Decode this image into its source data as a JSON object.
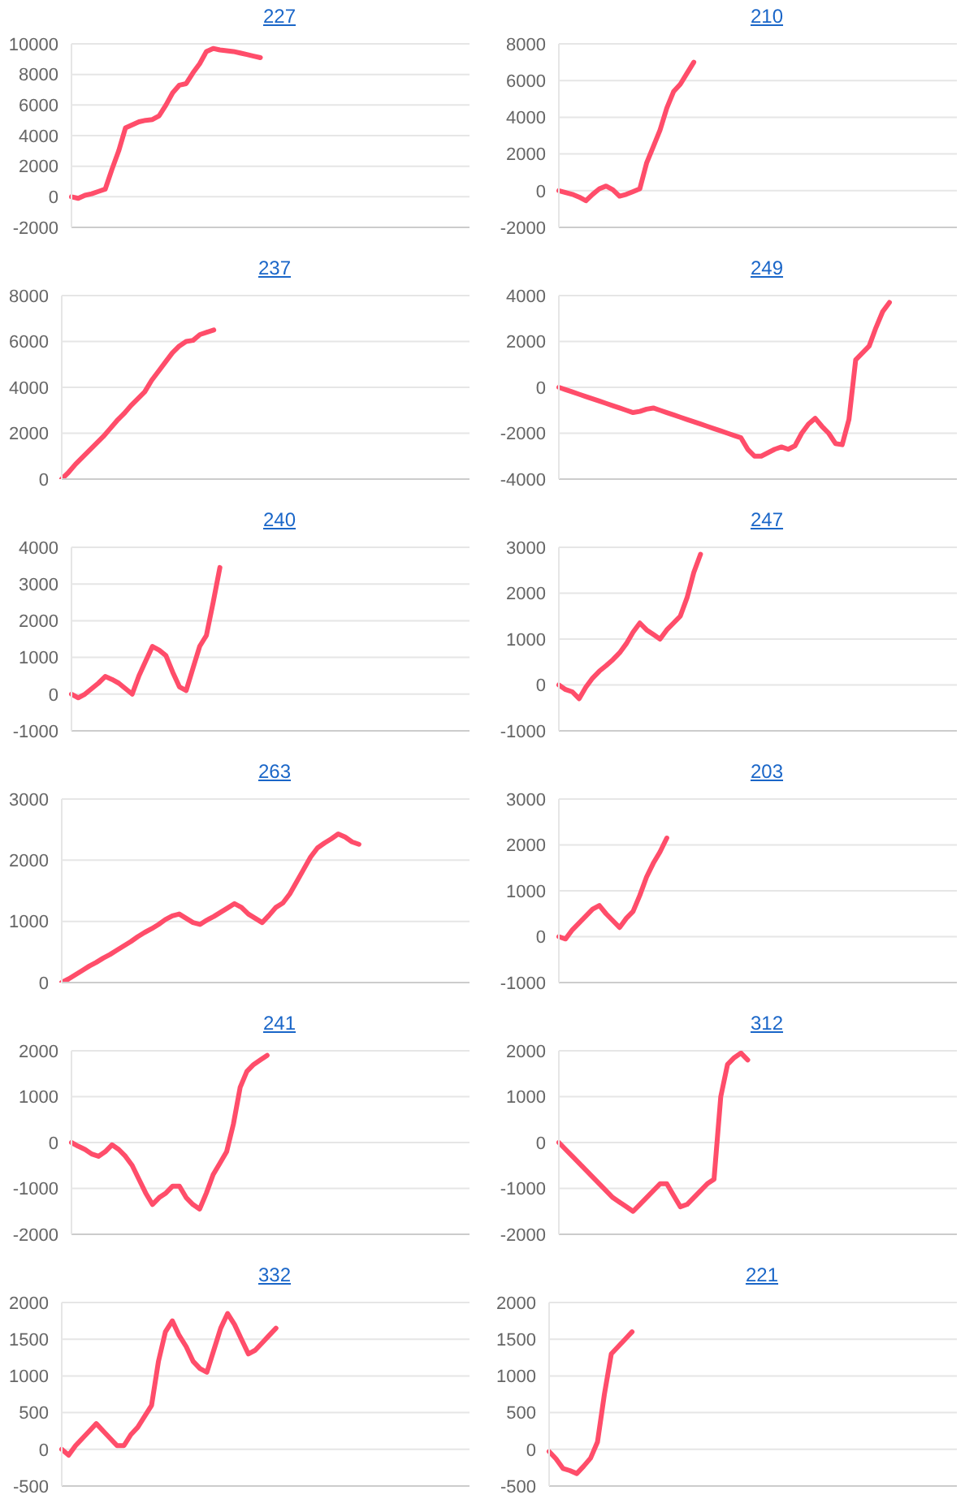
{
  "chart_data": [
    {
      "type": "line",
      "title": "227",
      "categories": [
        null,
        null,
        null,
        null,
        null,
        null,
        null,
        null,
        null,
        null,
        null,
        null,
        null,
        null,
        null,
        null,
        null,
        null,
        null,
        null,
        null,
        null,
        null,
        null,
        null,
        null,
        null,
        null,
        null,
        null,
        null,
        null,
        null,
        null,
        null,
        null,
        null,
        null,
        null,
        null,
        null,
        null,
        null,
        null,
        null,
        null,
        null,
        null,
        null,
        null,
        null,
        null,
        null,
        null,
        null,
        null,
        null,
        null,
        null,
        null
      ],
      "series": [
        {
          "color": "#ff4d6a",
          "values": [
            0,
            -100,
            100,
            200,
            350,
            500,
            1800,
            3000,
            4500,
            4700,
            4900,
            5000,
            5050,
            5300,
            6000,
            6800,
            7300,
            7400,
            8100,
            8700,
            9500,
            9700,
            9600,
            9550,
            9500,
            9400,
            9300,
            9200,
            9100,
            null,
            null,
            null,
            null,
            null,
            null,
            null,
            null,
            null,
            null,
            null,
            null,
            null,
            null,
            null,
            null,
            null,
            null,
            null,
            null,
            null,
            null,
            null,
            null,
            null,
            null,
            null,
            null,
            null,
            null,
            null
          ]
        }
      ],
      "ylim": [
        -2000,
        10000
      ],
      "yticks": [
        -2000,
        0,
        2000,
        4000,
        6000,
        8000,
        10000
      ],
      "grid": "y",
      "tick_labels": "y"
    },
    {
      "type": "line",
      "title": "210",
      "categories": [
        null,
        null,
        null,
        null,
        null,
        null,
        null,
        null,
        null,
        null,
        null,
        null,
        null,
        null,
        null,
        null,
        null,
        null,
        null,
        null,
        null,
        null,
        null,
        null,
        null,
        null,
        null,
        null,
        null,
        null,
        null,
        null,
        null,
        null,
        null,
        null,
        null,
        null,
        null,
        null,
        null,
        null,
        null,
        null,
        null,
        null,
        null,
        null,
        null,
        null,
        null,
        null,
        null,
        null,
        null,
        null,
        null,
        null,
        null,
        null
      ],
      "series": [
        {
          "color": "#ff4d6a",
          "values": [
            0,
            -100,
            -200,
            -350,
            -550,
            -200,
            100,
            250,
            50,
            -300,
            -200,
            -50,
            100,
            1500,
            2400,
            3300,
            4500,
            5400,
            5800,
            6400,
            7000,
            null,
            null,
            null,
            null,
            null,
            null,
            null,
            null,
            null,
            null,
            null,
            null,
            null,
            null,
            null,
            null,
            null,
            null,
            null,
            null,
            null,
            null,
            null,
            null,
            null,
            null,
            null,
            null,
            null,
            null,
            null,
            null,
            null,
            null,
            null,
            null,
            null,
            null,
            null
          ]
        }
      ],
      "ylim": [
        -2000,
        8000
      ],
      "yticks": [
        -2000,
        0,
        2000,
        4000,
        6000,
        8000
      ],
      "grid": "y",
      "tick_labels": "y"
    },
    {
      "type": "line",
      "title": "237",
      "categories": [
        null,
        null,
        null,
        null,
        null,
        null,
        null,
        null,
        null,
        null,
        null,
        null,
        null,
        null,
        null,
        null,
        null,
        null,
        null,
        null,
        null,
        null,
        null,
        null,
        null,
        null,
        null,
        null,
        null,
        null,
        null,
        null,
        null,
        null,
        null,
        null,
        null,
        null,
        null,
        null,
        null,
        null,
        null,
        null,
        null,
        null,
        null,
        null,
        null,
        null,
        null,
        null,
        null,
        null,
        null,
        null,
        null,
        null,
        null,
        null
      ],
      "series": [
        {
          "color": "#ff4d6a",
          "values": [
            0,
            300,
            650,
            950,
            1250,
            1550,
            1850,
            2200,
            2550,
            2850,
            3200,
            3500,
            3800,
            4300,
            4700,
            5100,
            5500,
            5800,
            6000,
            6050,
            6300,
            6400,
            6500,
            null,
            null,
            null,
            null,
            null,
            null,
            null,
            null,
            null,
            null,
            null,
            null,
            null,
            null,
            null,
            null,
            null,
            null,
            null,
            null,
            null,
            null,
            null,
            null,
            null,
            null,
            null,
            null,
            null,
            null,
            null,
            null,
            null,
            null,
            null,
            null,
            null
          ]
        }
      ],
      "ylim": [
        0,
        8000
      ],
      "yticks": [
        0,
        2000,
        4000,
        6000,
        8000
      ],
      "grid": "y",
      "tick_labels": "y"
    },
    {
      "type": "line",
      "title": "249",
      "categories": [
        null,
        null,
        null,
        null,
        null,
        null,
        null,
        null,
        null,
        null,
        null,
        null,
        null,
        null,
        null,
        null,
        null,
        null,
        null,
        null,
        null,
        null,
        null,
        null,
        null,
        null,
        null,
        null,
        null,
        null,
        null,
        null,
        null,
        null,
        null,
        null,
        null,
        null,
        null,
        null,
        null,
        null,
        null,
        null,
        null,
        null,
        null,
        null,
        null,
        null,
        null,
        null,
        null,
        null,
        null,
        null,
        null,
        null,
        null,
        null
      ],
      "series": [
        {
          "color": "#ff4d6a",
          "values": [
            0,
            -100,
            -200,
            -300,
            -400,
            -500,
            -600,
            -700,
            -800,
            -900,
            -1000,
            -1100,
            -1050,
            -950,
            -900,
            -1000,
            -1100,
            -1200,
            -1300,
            -1400,
            -1500,
            -1600,
            -1700,
            -1800,
            -1900,
            -2000,
            -2100,
            -2200,
            -2700,
            -3000,
            -3000,
            -2850,
            -2700,
            -2600,
            -2700,
            -2550,
            -2000,
            -1600,
            -1350,
            -1700,
            -2000,
            -2450,
            -2500,
            -1400,
            1200,
            1500,
            1800,
            2600,
            3300,
            3700,
            null,
            null,
            null,
            null,
            null,
            null,
            null,
            null,
            null,
            null
          ]
        }
      ],
      "ylim": [
        -4000,
        4000
      ],
      "yticks": [
        -4000,
        -2000,
        0,
        2000,
        4000
      ],
      "grid": "y",
      "tick_labels": "y"
    },
    {
      "type": "line",
      "title": "240",
      "categories": [
        null,
        null,
        null,
        null,
        null,
        null,
        null,
        null,
        null,
        null,
        null,
        null,
        null,
        null,
        null,
        null,
        null,
        null,
        null,
        null,
        null,
        null,
        null,
        null,
        null,
        null,
        null,
        null,
        null,
        null,
        null,
        null,
        null,
        null,
        null,
        null,
        null,
        null,
        null,
        null,
        null,
        null,
        null,
        null,
        null,
        null,
        null,
        null,
        null,
        null,
        null,
        null,
        null,
        null,
        null,
        null,
        null,
        null,
        null,
        null
      ],
      "series": [
        {
          "color": "#ff4d6a",
          "values": [
            0,
            -100,
            0,
            150,
            300,
            480,
            400,
            300,
            150,
            0,
            500,
            900,
            1300,
            1200,
            1050,
            600,
            200,
            100,
            700,
            1300,
            1600,
            2500,
            3450,
            null,
            null,
            null,
            null,
            null,
            null,
            null,
            null,
            null,
            null,
            null,
            null,
            null,
            null,
            null,
            null,
            null,
            null,
            null,
            null,
            null,
            null,
            null,
            null,
            null,
            null,
            null,
            null,
            null,
            null,
            null,
            null,
            null,
            null,
            null,
            null,
            null
          ]
        }
      ],
      "ylim": [
        -1000,
        4000
      ],
      "yticks": [
        -1000,
        0,
        1000,
        2000,
        3000,
        4000
      ],
      "grid": "y",
      "tick_labels": "y"
    },
    {
      "type": "line",
      "title": "247",
      "categories": [
        null,
        null,
        null,
        null,
        null,
        null,
        null,
        null,
        null,
        null,
        null,
        null,
        null,
        null,
        null,
        null,
        null,
        null,
        null,
        null,
        null,
        null,
        null,
        null,
        null,
        null,
        null,
        null,
        null,
        null,
        null,
        null,
        null,
        null,
        null,
        null,
        null,
        null,
        null,
        null,
        null,
        null,
        null,
        null,
        null,
        null,
        null,
        null,
        null,
        null,
        null,
        null,
        null,
        null,
        null,
        null,
        null,
        null,
        null,
        null
      ],
      "series": [
        {
          "color": "#ff4d6a",
          "values": [
            0,
            -100,
            -150,
            -300,
            -50,
            150,
            300,
            420,
            550,
            700,
            900,
            1150,
            1350,
            1200,
            1100,
            1000,
            1200,
            1350,
            1500,
            1900,
            2450,
            2850,
            null,
            null,
            null,
            null,
            null,
            null,
            null,
            null,
            null,
            null,
            null,
            null,
            null,
            null,
            null,
            null,
            null,
            null,
            null,
            null,
            null,
            null,
            null,
            null,
            null,
            null,
            null,
            null,
            null,
            null,
            null,
            null,
            null,
            null,
            null,
            null,
            null,
            null
          ]
        }
      ],
      "ylim": [
        -1000,
        3000
      ],
      "yticks": [
        -1000,
        0,
        1000,
        2000,
        3000
      ],
      "grid": "y",
      "tick_labels": "y"
    },
    {
      "type": "line",
      "title": "263",
      "categories": [
        null,
        null,
        null,
        null,
        null,
        null,
        null,
        null,
        null,
        null,
        null,
        null,
        null,
        null,
        null,
        null,
        null,
        null,
        null,
        null,
        null,
        null,
        null,
        null,
        null,
        null,
        null,
        null,
        null,
        null,
        null,
        null,
        null,
        null,
        null,
        null,
        null,
        null,
        null,
        null,
        null,
        null,
        null,
        null,
        null,
        null,
        null,
        null,
        null,
        null,
        null,
        null,
        null,
        null,
        null,
        null,
        null,
        null,
        null,
        null
      ],
      "series": [
        {
          "color": "#ff4d6a",
          "values": [
            0,
            60,
            130,
            200,
            270,
            330,
            400,
            460,
            530,
            600,
            670,
            750,
            820,
            880,
            950,
            1030,
            1090,
            1120,
            1050,
            980,
            950,
            1020,
            1080,
            1150,
            1220,
            1290,
            1230,
            1120,
            1050,
            980,
            1100,
            1230,
            1300,
            1450,
            1650,
            1850,
            2050,
            2200,
            2280,
            2350,
            2430,
            2380,
            2300,
            2260,
            null,
            null,
            null,
            null,
            null,
            null,
            null,
            null,
            null,
            null,
            null,
            null,
            null,
            null,
            null,
            null
          ]
        }
      ],
      "ylim": [
        0,
        3000
      ],
      "yticks": [
        0,
        1000,
        2000,
        3000
      ],
      "grid": "y",
      "tick_labels": "y"
    },
    {
      "type": "line",
      "title": "203",
      "categories": [
        null,
        null,
        null,
        null,
        null,
        null,
        null,
        null,
        null,
        null,
        null,
        null,
        null,
        null,
        null,
        null,
        null,
        null,
        null,
        null,
        null,
        null,
        null,
        null,
        null,
        null,
        null,
        null,
        null,
        null,
        null,
        null,
        null,
        null,
        null,
        null,
        null,
        null,
        null,
        null,
        null,
        null,
        null,
        null,
        null,
        null,
        null,
        null,
        null,
        null,
        null,
        null,
        null,
        null,
        null,
        null,
        null,
        null,
        null,
        null
      ],
      "series": [
        {
          "color": "#ff4d6a",
          "values": [
            0,
            -50,
            150,
            300,
            450,
            600,
            680,
            500,
            350,
            200,
            400,
            550,
            900,
            1300,
            1600,
            1850,
            2150,
            null,
            null,
            null,
            null,
            null,
            null,
            null,
            null,
            null,
            null,
            null,
            null,
            null,
            null,
            null,
            null,
            null,
            null,
            null,
            null,
            null,
            null,
            null,
            null,
            null,
            null,
            null,
            null,
            null,
            null,
            null,
            null,
            null,
            null,
            null,
            null,
            null,
            null,
            null,
            null,
            null,
            null,
            null
          ]
        }
      ],
      "ylim": [
        -1000,
        3000
      ],
      "yticks": [
        -1000,
        0,
        1000,
        2000,
        3000
      ],
      "grid": "y",
      "tick_labels": "y"
    },
    {
      "type": "line",
      "title": "241",
      "categories": [
        null,
        null,
        null,
        null,
        null,
        null,
        null,
        null,
        null,
        null,
        null,
        null,
        null,
        null,
        null,
        null,
        null,
        null,
        null,
        null,
        null,
        null,
        null,
        null,
        null,
        null,
        null,
        null,
        null,
        null,
        null,
        null,
        null,
        null,
        null,
        null,
        null,
        null,
        null,
        null,
        null,
        null,
        null,
        null,
        null,
        null,
        null,
        null,
        null,
        null,
        null,
        null,
        null,
        null,
        null,
        null,
        null,
        null,
        null,
        null
      ],
      "series": [
        {
          "color": "#ff4d6a",
          "values": [
            0,
            -80,
            -150,
            -250,
            -300,
            -200,
            -50,
            -150,
            -300,
            -500,
            -800,
            -1100,
            -1350,
            -1200,
            -1100,
            -950,
            -950,
            -1200,
            -1350,
            -1450,
            -1100,
            -700,
            -450,
            -200,
            400,
            1200,
            1550,
            1700,
            1800,
            1900,
            null,
            null,
            null,
            null,
            null,
            null,
            null,
            null,
            null,
            null,
            null,
            null,
            null,
            null,
            null,
            null,
            null,
            null,
            null,
            null,
            null,
            null,
            null,
            null,
            null,
            null,
            null,
            null,
            null,
            null
          ]
        }
      ],
      "ylim": [
        -2000,
        2000
      ],
      "yticks": [
        -2000,
        -1000,
        0,
        1000,
        2000
      ],
      "grid": "y",
      "tick_labels": "y"
    },
    {
      "type": "line",
      "title": "312",
      "categories": [
        null,
        null,
        null,
        null,
        null,
        null,
        null,
        null,
        null,
        null,
        null,
        null,
        null,
        null,
        null,
        null,
        null,
        null,
        null,
        null,
        null,
        null,
        null,
        null,
        null,
        null,
        null,
        null,
        null,
        null,
        null,
        null,
        null,
        null,
        null,
        null,
        null,
        null,
        null,
        null,
        null,
        null,
        null,
        null,
        null,
        null,
        null,
        null,
        null,
        null,
        null,
        null,
        null,
        null,
        null,
        null,
        null,
        null,
        null,
        null
      ],
      "series": [
        {
          "color": "#ff4d6a",
          "values": [
            0,
            -150,
            -300,
            -450,
            -600,
            -750,
            -900,
            -1050,
            -1200,
            -1300,
            -1400,
            -1500,
            -1350,
            -1200,
            -1050,
            -900,
            -900,
            -1150,
            -1400,
            -1350,
            -1200,
            -1050,
            -900,
            -800,
            1000,
            1700,
            1850,
            1950,
            1800,
            null,
            null,
            null,
            null,
            null,
            null,
            null,
            null,
            null,
            null,
            null,
            null,
            null,
            null,
            null,
            null,
            null,
            null,
            null,
            null,
            null,
            null,
            null,
            null,
            null,
            null,
            null,
            null,
            null,
            null,
            null
          ]
        }
      ],
      "ylim": [
        -2000,
        2000
      ],
      "yticks": [
        -2000,
        -1000,
        0,
        1000,
        2000
      ],
      "grid": "y",
      "tick_labels": "y"
    },
    {
      "type": "line",
      "title": "332",
      "categories": [
        null,
        null,
        null,
        null,
        null,
        null,
        null,
        null,
        null,
        null,
        null,
        null,
        null,
        null,
        null,
        null,
        null,
        null,
        null,
        null,
        null,
        null,
        null,
        null,
        null,
        null,
        null,
        null,
        null,
        null,
        null,
        null,
        null,
        null,
        null,
        null,
        null,
        null,
        null,
        null,
        null,
        null,
        null,
        null,
        null,
        null,
        null,
        null,
        null,
        null,
        null,
        null,
        null,
        null,
        null,
        null,
        null,
        null,
        null,
        null
      ],
      "series": [
        {
          "color": "#ff4d6a",
          "values": [
            0,
            -80,
            50,
            150,
            250,
            350,
            250,
            150,
            50,
            50,
            200,
            300,
            450,
            600,
            1200,
            1600,
            1750,
            1550,
            1400,
            1200,
            1100,
            1050,
            1350,
            1650,
            1850,
            1700,
            1500,
            1300,
            1350,
            1450,
            1550,
            1650,
            null,
            null,
            null,
            null,
            null,
            null,
            null,
            null,
            null,
            null,
            null,
            null,
            null,
            null,
            null,
            null,
            null,
            null,
            null,
            null,
            null,
            null,
            null,
            null,
            null,
            null,
            null,
            null
          ]
        }
      ],
      "ylim": [
        -500,
        2000
      ],
      "yticks": [
        -500,
        0,
        500,
        1000,
        1500,
        2000
      ],
      "grid": "y",
      "tick_labels": "y"
    },
    {
      "type": "line",
      "title": "221",
      "categories": [
        null,
        null,
        null,
        null,
        null,
        null,
        null,
        null,
        null,
        null,
        null,
        null,
        null,
        null,
        null,
        null,
        null,
        null,
        null,
        null,
        null,
        null,
        null,
        null,
        null,
        null,
        null,
        null,
        null,
        null,
        null,
        null,
        null,
        null,
        null,
        null,
        null,
        null,
        null,
        null,
        null,
        null,
        null,
        null,
        null,
        null,
        null,
        null,
        null,
        null,
        null,
        null,
        null,
        null,
        null,
        null,
        null,
        null,
        null,
        null
      ],
      "series": [
        {
          "color": "#ff4d6a",
          "values": [
            -30,
            -130,
            -260,
            -290,
            -330,
            -230,
            -120,
            100,
            750,
            1300,
            1400,
            1500,
            1600,
            null,
            null,
            null,
            null,
            null,
            null,
            null,
            null,
            null,
            null,
            null,
            null,
            null,
            null,
            null,
            null,
            null,
            null,
            null,
            null,
            null,
            null,
            null,
            null,
            null,
            null,
            null,
            null,
            null,
            null,
            null,
            null,
            null,
            null,
            null,
            null,
            null,
            null,
            null,
            null,
            null,
            null,
            null,
            null,
            null,
            null,
            null
          ]
        }
      ],
      "ylim": [
        -500,
        2000
      ],
      "yticks": [
        -500,
        0,
        500,
        1000,
        1500,
        2000
      ],
      "grid": "y",
      "tick_labels": "y"
    }
  ]
}
